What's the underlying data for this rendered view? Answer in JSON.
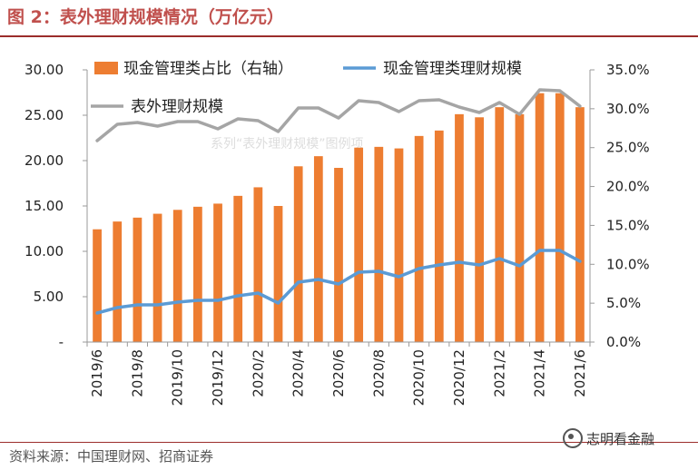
{
  "title": "图 2：表外理财规模情况（万亿元）",
  "source": "资料来源：中国理财网、招商证券",
  "brand": "志明看金融",
  "watermark": "系列“表外理财规模”图例项",
  "colors": {
    "bar": "#ed7d31",
    "cash_line": "#5b9bd5",
    "total_line": "#a5a5a5",
    "accent": "#c0504d"
  },
  "chart_data": {
    "type": "bar",
    "categories": [
      "2019/6",
      "2019/7",
      "2019/8",
      "2019/9",
      "2019/10",
      "2019/11",
      "2019/12",
      "2020/1",
      "2020/2",
      "2020/3",
      "2020/4",
      "2020/5",
      "2020/6",
      "2020/7",
      "2020/8",
      "2020/9",
      "2020/10",
      "2020/11",
      "2020/12",
      "2021/1",
      "2021/2",
      "2021/3",
      "2021/4",
      "2021/5",
      "2021/6"
    ],
    "x_tick_labels": [
      "2019/6",
      "2019/8",
      "2019/10",
      "2019/12",
      "2020/2",
      "2020/4",
      "2020/6",
      "2020/8",
      "2020/10",
      "2020/12",
      "2021/2",
      "2021/4",
      "2021/6"
    ],
    "left_axis": {
      "ylim": [
        0,
        30
      ],
      "ticks": [
        "-",
        "5.00",
        "10.00",
        "15.00",
        "20.00",
        "25.00",
        "30.00"
      ]
    },
    "right_axis": {
      "ylim": [
        0,
        35
      ],
      "ticks": [
        "0.0%",
        "5.0%",
        "10.0%",
        "15.0%",
        "20.0%",
        "25.0%",
        "30.0%",
        "35.0%"
      ]
    },
    "series": [
      {
        "name": "现金管理类占比（右轴）",
        "kind": "bar",
        "axis": "right",
        "values": [
          14.5,
          15.5,
          16.0,
          16.5,
          17.0,
          17.4,
          17.8,
          18.8,
          19.9,
          17.5,
          22.6,
          23.9,
          22.4,
          25.0,
          25.1,
          24.9,
          26.5,
          27.2,
          29.3,
          28.9,
          30.2,
          29.3,
          32.0,
          32.0,
          30.2
        ]
      },
      {
        "name": "现金管理类理财规模",
        "kind": "line",
        "axis": "left",
        "values": [
          3.2,
          3.8,
          4.1,
          4.1,
          4.4,
          4.6,
          4.6,
          5.1,
          5.4,
          4.3,
          6.6,
          6.9,
          6.4,
          7.7,
          7.8,
          7.2,
          8.1,
          8.5,
          8.8,
          8.5,
          9.2,
          8.4,
          10.1,
          10.1,
          8.9
        ]
      },
      {
        "name": "表外理财规模",
        "kind": "line",
        "axis": "left",
        "values": [
          22.2,
          24.0,
          24.2,
          23.8,
          24.3,
          24.3,
          23.5,
          24.6,
          24.4,
          23.2,
          25.8,
          25.8,
          24.7,
          26.6,
          26.4,
          25.4,
          26.6,
          26.7,
          25.9,
          25.3,
          26.4,
          25.1,
          27.8,
          27.7,
          26.0
        ]
      }
    ]
  }
}
